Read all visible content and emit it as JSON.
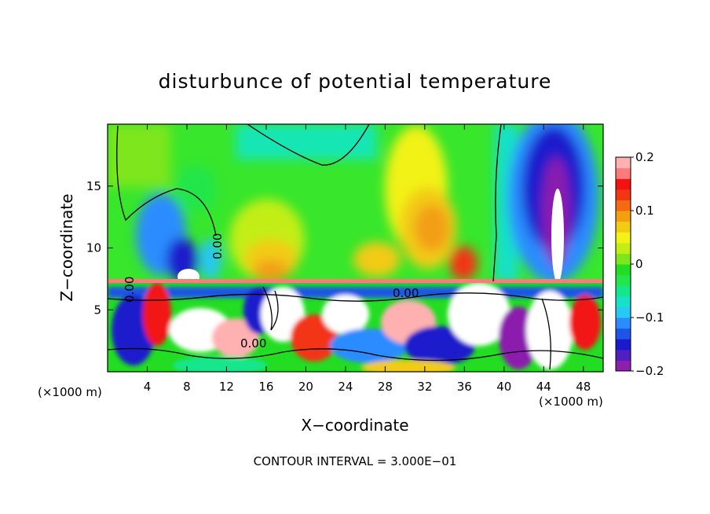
{
  "chart_data": {
    "type": "heatmap",
    "title": "disturbunce of potential temperature",
    "xlabel": "X−coordinate",
    "ylabel": "Z−coordinate",
    "x_unit": "(×1000 m)",
    "x_unit_right": "(×1000 m)",
    "xlim": [
      0,
      50
    ],
    "ylim": [
      0,
      20
    ],
    "x_ticks": [
      4,
      8,
      12,
      16,
      20,
      24,
      28,
      32,
      36,
      40,
      44,
      48
    ],
    "y_ticks": [
      5,
      10,
      15
    ],
    "colorbar": {
      "min": -0.2,
      "max": 0.2,
      "tick_values": [
        0.2,
        0.1,
        0,
        -0.1,
        -0.2
      ],
      "tick_labels": [
        "0.2",
        "0.1",
        "0",
        "−0.1",
        "−0.2"
      ],
      "colors": [
        "#8c1fae",
        "#4f1fbf",
        "#1a1acc",
        "#1f55e6",
        "#2b8cff",
        "#27c8f2",
        "#19e0c8",
        "#15e68c",
        "#24e64a",
        "#22dd22",
        "#7ee61c",
        "#c2ee16",
        "#f2f213",
        "#f2cb12",
        "#f29f12",
        "#f26a12",
        "#f23512",
        "#f21212",
        "#ff7a7a",
        "#ffb0b0"
      ]
    },
    "contour_labels": [
      "0.00",
      "0.00",
      "0.00",
      "0.00"
    ],
    "contour_interval_text": "CONTOUR INTERVAL = 3.000E−01"
  }
}
